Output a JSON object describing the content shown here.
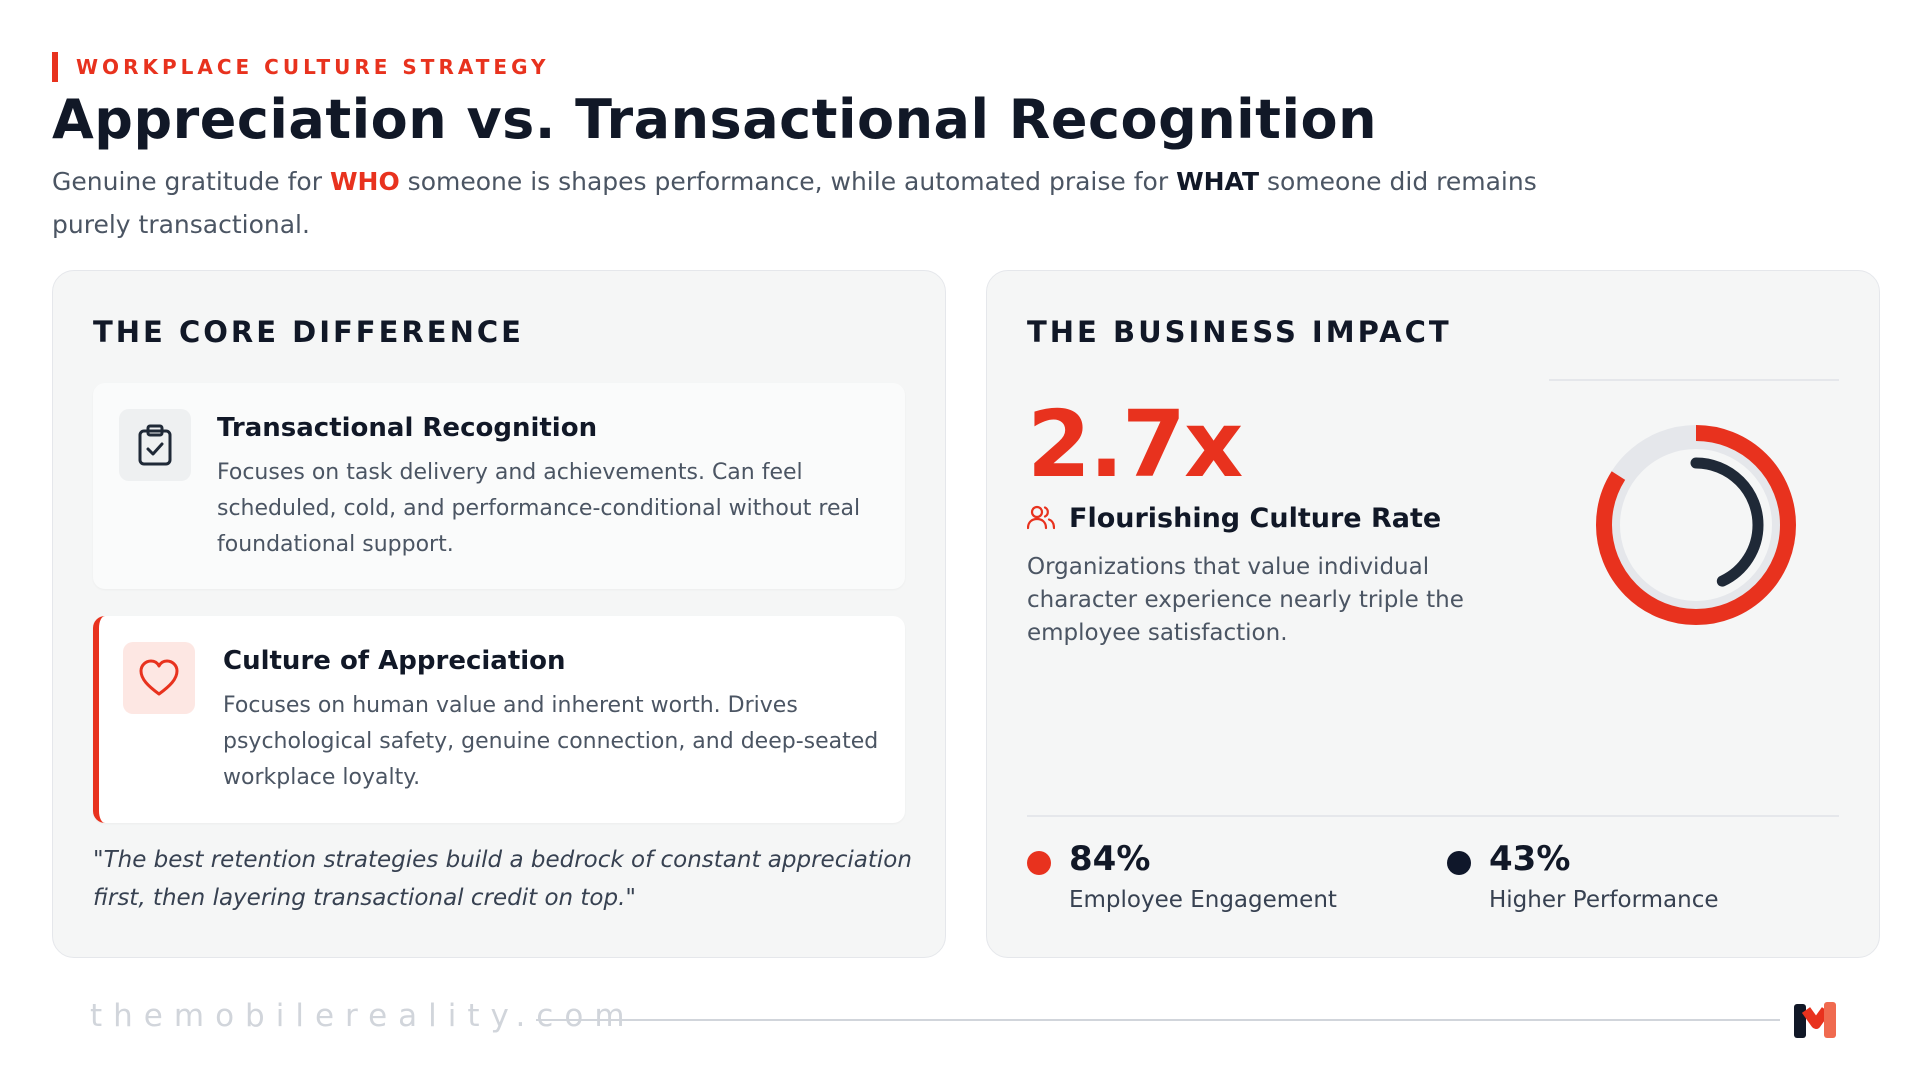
{
  "header": {
    "eyebrow": "WORKPLACE CULTURE STRATEGY",
    "title": "Appreciation vs. Transactional Recognition",
    "subtitle": {
      "part1": "Genuine gratitude for ",
      "who": "WHO",
      "part2": " someone is shapes performance, while automated praise for ",
      "what": "WHAT",
      "part3": " someone did remains purely transactional."
    }
  },
  "core_difference": {
    "heading": "THE CORE DIFFERENCE",
    "items": [
      {
        "icon": "clipboard-check-icon",
        "title": "Transactional Recognition",
        "description": "Focuses on task delivery and achievements. Can feel scheduled, cold, and performance-conditional without real foundational support."
      },
      {
        "icon": "heart-icon",
        "title": "Culture of Appreciation",
        "description": "Focuses on human value and inherent worth. Drives psychological safety, genuine connection, and deep-seated workplace loyalty."
      }
    ],
    "quote": "\"The best retention strategies build a bedrock of constant appreciation first, then layering transactional credit on top.\""
  },
  "business_impact": {
    "heading": "THE BUSINESS IMPACT",
    "big_stat": "2.7x",
    "metric_icon": "users-icon",
    "metric_label": "Flourishing Culture Rate",
    "metric_description": "Organizations that value individual character experience nearly triple the employee satisfaction.",
    "donut": {
      "outer_fraction": 0.84,
      "inner_fraction": 0.43,
      "outer_color": "#e8321e",
      "inner_color": "#1f2937",
      "track_color": "#e5e7eb"
    },
    "stats": [
      {
        "value": "84%",
        "label": "Employee Engagement",
        "color": "#e8321e"
      },
      {
        "value": "43%",
        "label": "Higher Performance",
        "color": "#0f172a"
      }
    ]
  },
  "footer": {
    "url": "themobilereality.com",
    "logo": "mobile-reality-logo"
  }
}
